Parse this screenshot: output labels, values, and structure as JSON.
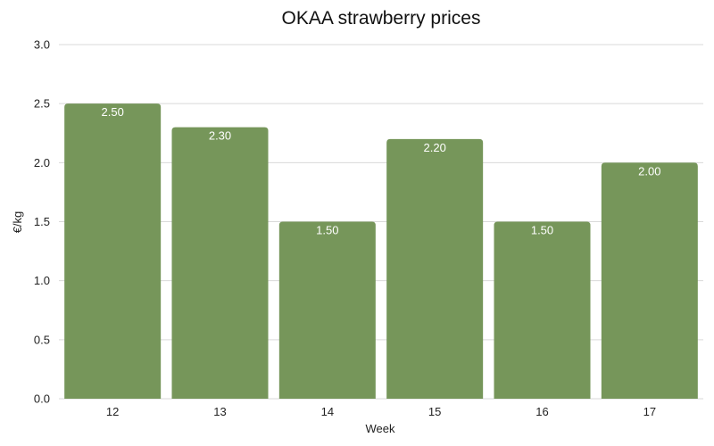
{
  "chart_data": {
    "type": "bar",
    "title": "OKAA strawberry prices",
    "xlabel": "Week",
    "ylabel": "€/kg",
    "categories": [
      "12",
      "13",
      "14",
      "15",
      "16",
      "17"
    ],
    "values": [
      2.5,
      2.3,
      1.5,
      2.2,
      1.5,
      2.0
    ],
    "data_labels": [
      "2.50",
      "2.30",
      "1.50",
      "2.20",
      "1.50",
      "2.00"
    ],
    "ylim": [
      0,
      3
    ],
    "yticks": [
      "0.0",
      "0.5",
      "1.0",
      "1.5",
      "2.0",
      "2.5",
      "3.0"
    ],
    "grid": true,
    "bar_color": "#76965a"
  }
}
